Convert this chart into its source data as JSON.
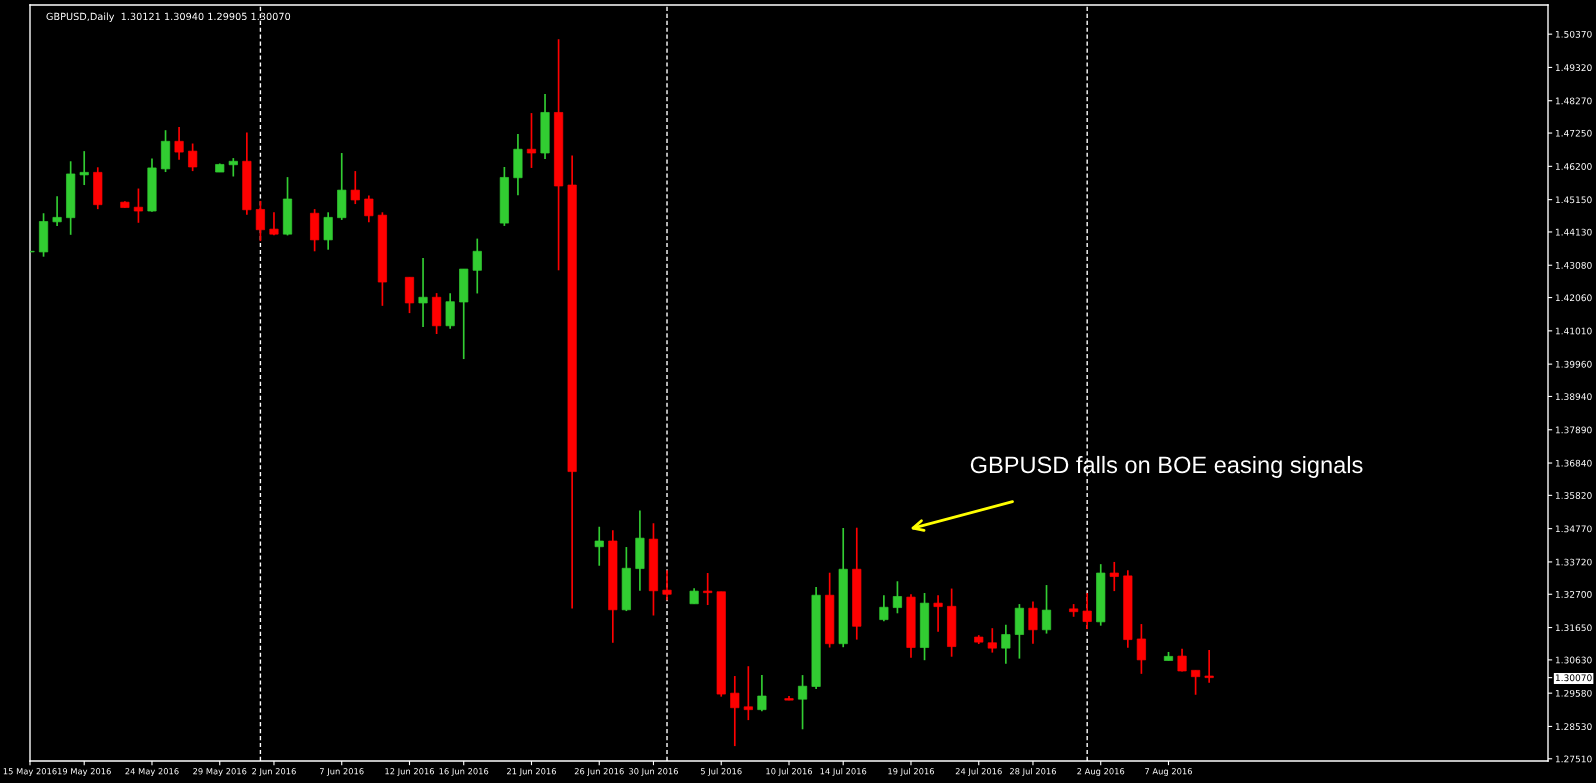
{
  "chart_data": {
    "type": "candlestick",
    "title": "GBPUSD,Daily  1.30121 1.30940 1.29905 1.30070",
    "annotations": [
      "GBPUSD falls on BOE easing signals"
    ],
    "x": [
      "2016-05-15",
      "2016-05-16",
      "2016-05-17",
      "2016-05-18",
      "2016-05-19",
      "2016-05-20",
      "2016-05-22",
      "2016-05-23",
      "2016-05-24",
      "2016-05-25",
      "2016-05-26",
      "2016-05-27",
      "2016-05-29",
      "2016-05-30",
      "2016-05-31",
      "2016-06-01",
      "2016-06-02",
      "2016-06-03",
      "2016-06-05",
      "2016-06-06",
      "2016-06-07",
      "2016-06-08",
      "2016-06-09",
      "2016-06-10",
      "2016-06-12",
      "2016-06-13",
      "2016-06-14",
      "2016-06-15",
      "2016-06-16",
      "2016-06-17",
      "2016-06-19",
      "2016-06-20",
      "2016-06-21",
      "2016-06-22",
      "2016-06-23",
      "2016-06-24",
      "2016-06-26",
      "2016-06-27",
      "2016-06-28",
      "2016-06-29",
      "2016-06-30",
      "2016-07-01",
      "2016-07-03",
      "2016-07-04",
      "2016-07-05",
      "2016-07-06",
      "2016-07-07",
      "2016-07-08",
      "2016-07-10",
      "2016-07-11",
      "2016-07-12",
      "2016-07-13",
      "2016-07-14",
      "2016-07-15",
      "2016-07-17",
      "2016-07-18",
      "2016-07-19",
      "2016-07-20",
      "2016-07-21",
      "2016-07-22",
      "2016-07-24",
      "2016-07-25",
      "2016-07-26",
      "2016-07-27",
      "2016-07-28",
      "2016-07-29",
      "2016-07-31",
      "2016-08-01",
      "2016-08-02",
      "2016-08-03",
      "2016-08-04",
      "2016-08-05",
      "2016-08-07",
      "2016-08-08",
      "2016-08-09",
      "2016-08-10"
    ],
    "ohlc": [
      [
        1.435,
        1.4353,
        1.4349,
        1.4352
      ],
      [
        1.435,
        1.4472,
        1.4335,
        1.4446
      ],
      [
        1.4445,
        1.4526,
        1.4432,
        1.4459
      ],
      [
        1.4458,
        1.4636,
        1.4404,
        1.4596
      ],
      [
        1.4593,
        1.4668,
        1.4561,
        1.4601
      ],
      [
        1.4601,
        1.4617,
        1.4485,
        1.4499
      ],
      [
        1.4507,
        1.451,
        1.4489,
        1.449
      ],
      [
        1.4491,
        1.455,
        1.4442,
        1.4479
      ],
      [
        1.4479,
        1.4645,
        1.4477,
        1.4615
      ],
      [
        1.4612,
        1.4734,
        1.4602,
        1.4699
      ],
      [
        1.4699,
        1.4744,
        1.4641,
        1.4665
      ],
      [
        1.4668,
        1.4692,
        1.4605,
        1.4618
      ],
      [
        1.4602,
        1.4629,
        1.4602,
        1.4626
      ],
      [
        1.4625,
        1.4646,
        1.4588,
        1.4636
      ],
      [
        1.4636,
        1.4727,
        1.4467,
        1.4483
      ],
      [
        1.4484,
        1.4511,
        1.4384,
        1.442
      ],
      [
        1.4422,
        1.4475,
        1.4403,
        1.4406
      ],
      [
        1.4406,
        1.4586,
        1.4402,
        1.4517
      ],
      [
        1.4472,
        1.4485,
        1.4352,
        1.4388
      ],
      [
        1.4388,
        1.4475,
        1.4357,
        1.4459
      ],
      [
        1.4458,
        1.4662,
        1.4451,
        1.4545
      ],
      [
        1.4545,
        1.4605,
        1.4501,
        1.4514
      ],
      [
        1.4517,
        1.4528,
        1.4444,
        1.4464
      ],
      [
        1.4466,
        1.4475,
        1.418,
        1.4255
      ],
      [
        1.427,
        1.427,
        1.4157,
        1.4189
      ],
      [
        1.4189,
        1.4331,
        1.4113,
        1.4207
      ],
      [
        1.4207,
        1.422,
        1.4091,
        1.4117
      ],
      [
        1.4117,
        1.422,
        1.4108,
        1.4193
      ],
      [
        1.4192,
        1.4296,
        1.4012,
        1.4296
      ],
      [
        1.4292,
        1.4392,
        1.4219,
        1.4352
      ],
      [
        1.4441,
        1.4618,
        1.4432,
        1.4585
      ],
      [
        1.4584,
        1.4722,
        1.4529,
        1.4674
      ],
      [
        1.4674,
        1.4788,
        1.4615,
        1.4662
      ],
      [
        1.4662,
        1.4848,
        1.4643,
        1.479
      ],
      [
        1.479,
        1.5021,
        1.4292,
        1.4558
      ],
      [
        1.4561,
        1.4654,
        1.3225,
        1.3657
      ],
      [
        1.342,
        1.3483,
        1.336,
        1.3438
      ],
      [
        1.3438,
        1.3472,
        1.3117,
        1.3221
      ],
      [
        1.3221,
        1.3419,
        1.3217,
        1.3352
      ],
      [
        1.3351,
        1.3534,
        1.3281,
        1.3447
      ],
      [
        1.3444,
        1.3494,
        1.3203,
        1.3281
      ],
      [
        1.3283,
        1.3346,
        1.3251,
        1.327
      ],
      [
        1.324,
        1.3289,
        1.324,
        1.328
      ],
      [
        1.328,
        1.3337,
        1.3236,
        1.3275
      ],
      [
        1.3278,
        1.3278,
        1.2947,
        1.2955
      ],
      [
        1.2958,
        1.3012,
        1.2791,
        1.2912
      ],
      [
        1.2915,
        1.3043,
        1.2873,
        1.2906
      ],
      [
        1.2906,
        1.3015,
        1.2901,
        1.2949
      ],
      [
        1.2941,
        1.2949,
        1.2936,
        1.2936
      ],
      [
        1.2939,
        1.3015,
        1.2844,
        1.298
      ],
      [
        1.2979,
        1.3293,
        1.2971,
        1.3267
      ],
      [
        1.3267,
        1.3338,
        1.3102,
        1.3114
      ],
      [
        1.3114,
        1.3479,
        1.3103,
        1.3349
      ],
      [
        1.3349,
        1.348,
        1.3127,
        1.3169
      ],
      [
        1.319,
        1.3267,
        1.3185,
        1.3229
      ],
      [
        1.3228,
        1.3311,
        1.321,
        1.3263
      ],
      [
        1.3261,
        1.327,
        1.307,
        1.3102
      ],
      [
        1.3102,
        1.3274,
        1.3062,
        1.3242
      ],
      [
        1.3242,
        1.3267,
        1.3152,
        1.3231
      ],
      [
        1.3232,
        1.3288,
        1.3073,
        1.3105
      ],
      [
        1.3135,
        1.3141,
        1.3113,
        1.3119
      ],
      [
        1.3117,
        1.3163,
        1.3086,
        1.31
      ],
      [
        1.31,
        1.3174,
        1.3051,
        1.3143
      ],
      [
        1.3143,
        1.3239,
        1.3067,
        1.3226
      ],
      [
        1.3226,
        1.3247,
        1.3114,
        1.3158
      ],
      [
        1.3158,
        1.3299,
        1.3146,
        1.322
      ],
      [
        1.3224,
        1.3239,
        1.3199,
        1.3215
      ],
      [
        1.3217,
        1.3274,
        1.316,
        1.3184
      ],
      [
        1.3183,
        1.3365,
        1.3171,
        1.3337
      ],
      [
        1.3337,
        1.3372,
        1.328,
        1.3326
      ],
      [
        1.3328,
        1.3346,
        1.3101,
        1.3127
      ],
      [
        1.3129,
        1.3176,
        1.3019,
        1.3063
      ],
      [
        1.3061,
        1.3088,
        1.3061,
        1.3074
      ],
      [
        1.3075,
        1.3098,
        1.3026,
        1.3028
      ],
      [
        1.303,
        1.303,
        1.2953,
        1.301
      ],
      [
        1.30121,
        1.3094,
        1.29905,
        1.3007
      ]
    ],
    "colors": [
      "#32cd32",
      "#32cd32",
      "#32cd32",
      "#32cd32",
      "#32cd32",
      "#ff0000",
      "#ff0000",
      "#ff0000",
      "#32cd32",
      "#32cd32",
      "#ff0000",
      "#ff0000",
      "#32cd32",
      "#32cd32",
      "#ff0000",
      "#ff0000",
      "#ff0000",
      "#32cd32",
      "#ff0000",
      "#32cd32",
      "#32cd32",
      "#ff0000",
      "#ff0000",
      "#ff0000",
      "#ff0000",
      "#32cd32",
      "#ff0000",
      "#32cd32",
      "#32cd32",
      "#32cd32",
      "#32cd32",
      "#32cd32",
      "#ff0000",
      "#32cd32",
      "#ff0000",
      "#ff0000",
      "#32cd32",
      "#ff0000",
      "#32cd32",
      "#32cd32",
      "#ff0000",
      "#ff0000",
      "#32cd32",
      "#ff0000",
      "#ff0000",
      "#ff0000",
      "#ff0000",
      "#32cd32",
      "#ff0000",
      "#32cd32",
      "#32cd32",
      "#ff0000",
      "#32cd32",
      "#ff0000",
      "#32cd32",
      "#32cd32",
      "#ff0000",
      "#32cd32",
      "#ff0000",
      "#ff0000",
      "#ff0000",
      "#ff0000",
      "#32cd32",
      "#32cd32",
      "#ff0000",
      "#32cd32",
      "#ff0000",
      "#ff0000",
      "#32cd32",
      "#ff0000",
      "#ff0000",
      "#ff0000",
      "#32cd32",
      "#ff0000",
      "#ff0000",
      "#ff0000"
    ],
    "xlim": [
      "2016-05-15",
      "2016-09-04"
    ],
    "xticks": [
      {
        "value": "2016-05-15",
        "label": "15 May 2016"
      },
      {
        "value": "2016-05-19",
        "label": "19 May 2016"
      },
      {
        "value": "2016-05-24",
        "label": "24 May 2016"
      },
      {
        "value": "2016-05-29",
        "label": "29 May 2016"
      },
      {
        "value": "2016-06-02",
        "label": "2 Jun 2016"
      },
      {
        "value": "2016-06-07",
        "label": "7 Jun 2016"
      },
      {
        "value": "2016-06-12",
        "label": "12 Jun 2016"
      },
      {
        "value": "2016-06-16",
        "label": "16 Jun 2016"
      },
      {
        "value": "2016-06-21",
        "label": "21 Jun 2016"
      },
      {
        "value": "2016-06-26",
        "label": "26 Jun 2016"
      },
      {
        "value": "2016-06-30",
        "label": "30 Jun 2016"
      },
      {
        "value": "2016-07-05",
        "label": "5 Jul 2016"
      },
      {
        "value": "2016-07-10",
        "label": "10 Jul 2016"
      },
      {
        "value": "2016-07-14",
        "label": "14 Jul 2016"
      },
      {
        "value": "2016-07-19",
        "label": "19 Jul 2016"
      },
      {
        "value": "2016-07-24",
        "label": "24 Jul 2016"
      },
      {
        "value": "2016-07-28",
        "label": "28 Jul 2016"
      },
      {
        "value": "2016-08-02",
        "label": "2 Aug 2016"
      },
      {
        "value": "2016-08-07",
        "label": "7 Aug 2016"
      }
    ],
    "ylim": [
      1.2744,
      1.5129
    ],
    "yticks": [
      {
        "value": 1.5037,
        "label": "1.50370"
      },
      {
        "value": 1.4932,
        "label": "1.49320"
      },
      {
        "value": 1.4827,
        "label": "1.48270"
      },
      {
        "value": 1.4725,
        "label": "1.47250"
      },
      {
        "value": 1.462,
        "label": "1.46200"
      },
      {
        "value": 1.4515,
        "label": "1.45150"
      },
      {
        "value": 1.4413,
        "label": "1.44130"
      },
      {
        "value": 1.4308,
        "label": "1.43080"
      },
      {
        "value": 1.4206,
        "label": "1.42060"
      },
      {
        "value": 1.4101,
        "label": "1.41010"
      },
      {
        "value": 1.3996,
        "label": "1.39960"
      },
      {
        "value": 1.3894,
        "label": "1.38940"
      },
      {
        "value": 1.3789,
        "label": "1.37890"
      },
      {
        "value": 1.3684,
        "label": "1.36840"
      },
      {
        "value": 1.3582,
        "label": "1.35820"
      },
      {
        "value": 1.3477,
        "label": "1.34770"
      },
      {
        "value": 1.3372,
        "label": "1.33720"
      },
      {
        "value": 1.327,
        "label": "1.32700"
      },
      {
        "value": 1.3165,
        "label": "1.31650"
      },
      {
        "value": 1.3063,
        "label": "1.30630"
      },
      {
        "value": 1.3007,
        "label": "1.30070"
      },
      {
        "value": 1.2958,
        "label": "1.29580"
      },
      {
        "value": 1.2853,
        "label": "1.28530"
      },
      {
        "value": 1.2751,
        "label": "1.27510"
      }
    ],
    "ref_lines": [
      {
        "axis": "x",
        "value": "2016-06-01",
        "color": "#ffffff",
        "line_style": "dashed"
      },
      {
        "axis": "x",
        "value": "2016-07-01",
        "color": "#ffffff",
        "line_style": "dashed"
      },
      {
        "axis": "x",
        "value": "2016-08-01",
        "color": "#ffffff",
        "line_style": "dashed"
      }
    ],
    "grid": false,
    "legend": false
  }
}
